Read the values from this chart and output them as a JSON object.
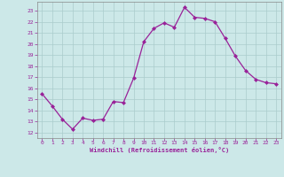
{
  "x": [
    0,
    1,
    2,
    3,
    4,
    5,
    6,
    7,
    8,
    9,
    10,
    11,
    12,
    13,
    14,
    15,
    16,
    17,
    18,
    19,
    20,
    21,
    22,
    23
  ],
  "y": [
    15.5,
    14.4,
    13.2,
    12.3,
    13.3,
    13.1,
    13.2,
    14.8,
    14.7,
    16.9,
    20.2,
    21.4,
    21.9,
    21.5,
    23.3,
    22.4,
    22.3,
    22.0,
    20.5,
    18.9,
    17.6,
    16.8,
    16.5,
    16.4
  ],
  "line_color": "#992299",
  "marker": "D",
  "marker_size": 2.0,
  "linewidth": 0.9,
  "bg_color": "#cce8e8",
  "grid_color": "#aacccc",
  "xlabel": "Windchill (Refroidissement éolien,°C)",
  "xlabel_color": "#992299",
  "tick_color": "#992299",
  "label_color": "#992299",
  "ylim": [
    11.5,
    23.8
  ],
  "yticks": [
    12,
    13,
    14,
    15,
    16,
    17,
    18,
    19,
    20,
    21,
    22,
    23
  ],
  "xticks": [
    0,
    1,
    2,
    3,
    4,
    5,
    6,
    7,
    8,
    9,
    10,
    11,
    12,
    13,
    14,
    15,
    16,
    17,
    18,
    19,
    20,
    21,
    22,
    23
  ],
  "spine_color": "#888888",
  "xlim": [
    -0.5,
    23.5
  ]
}
